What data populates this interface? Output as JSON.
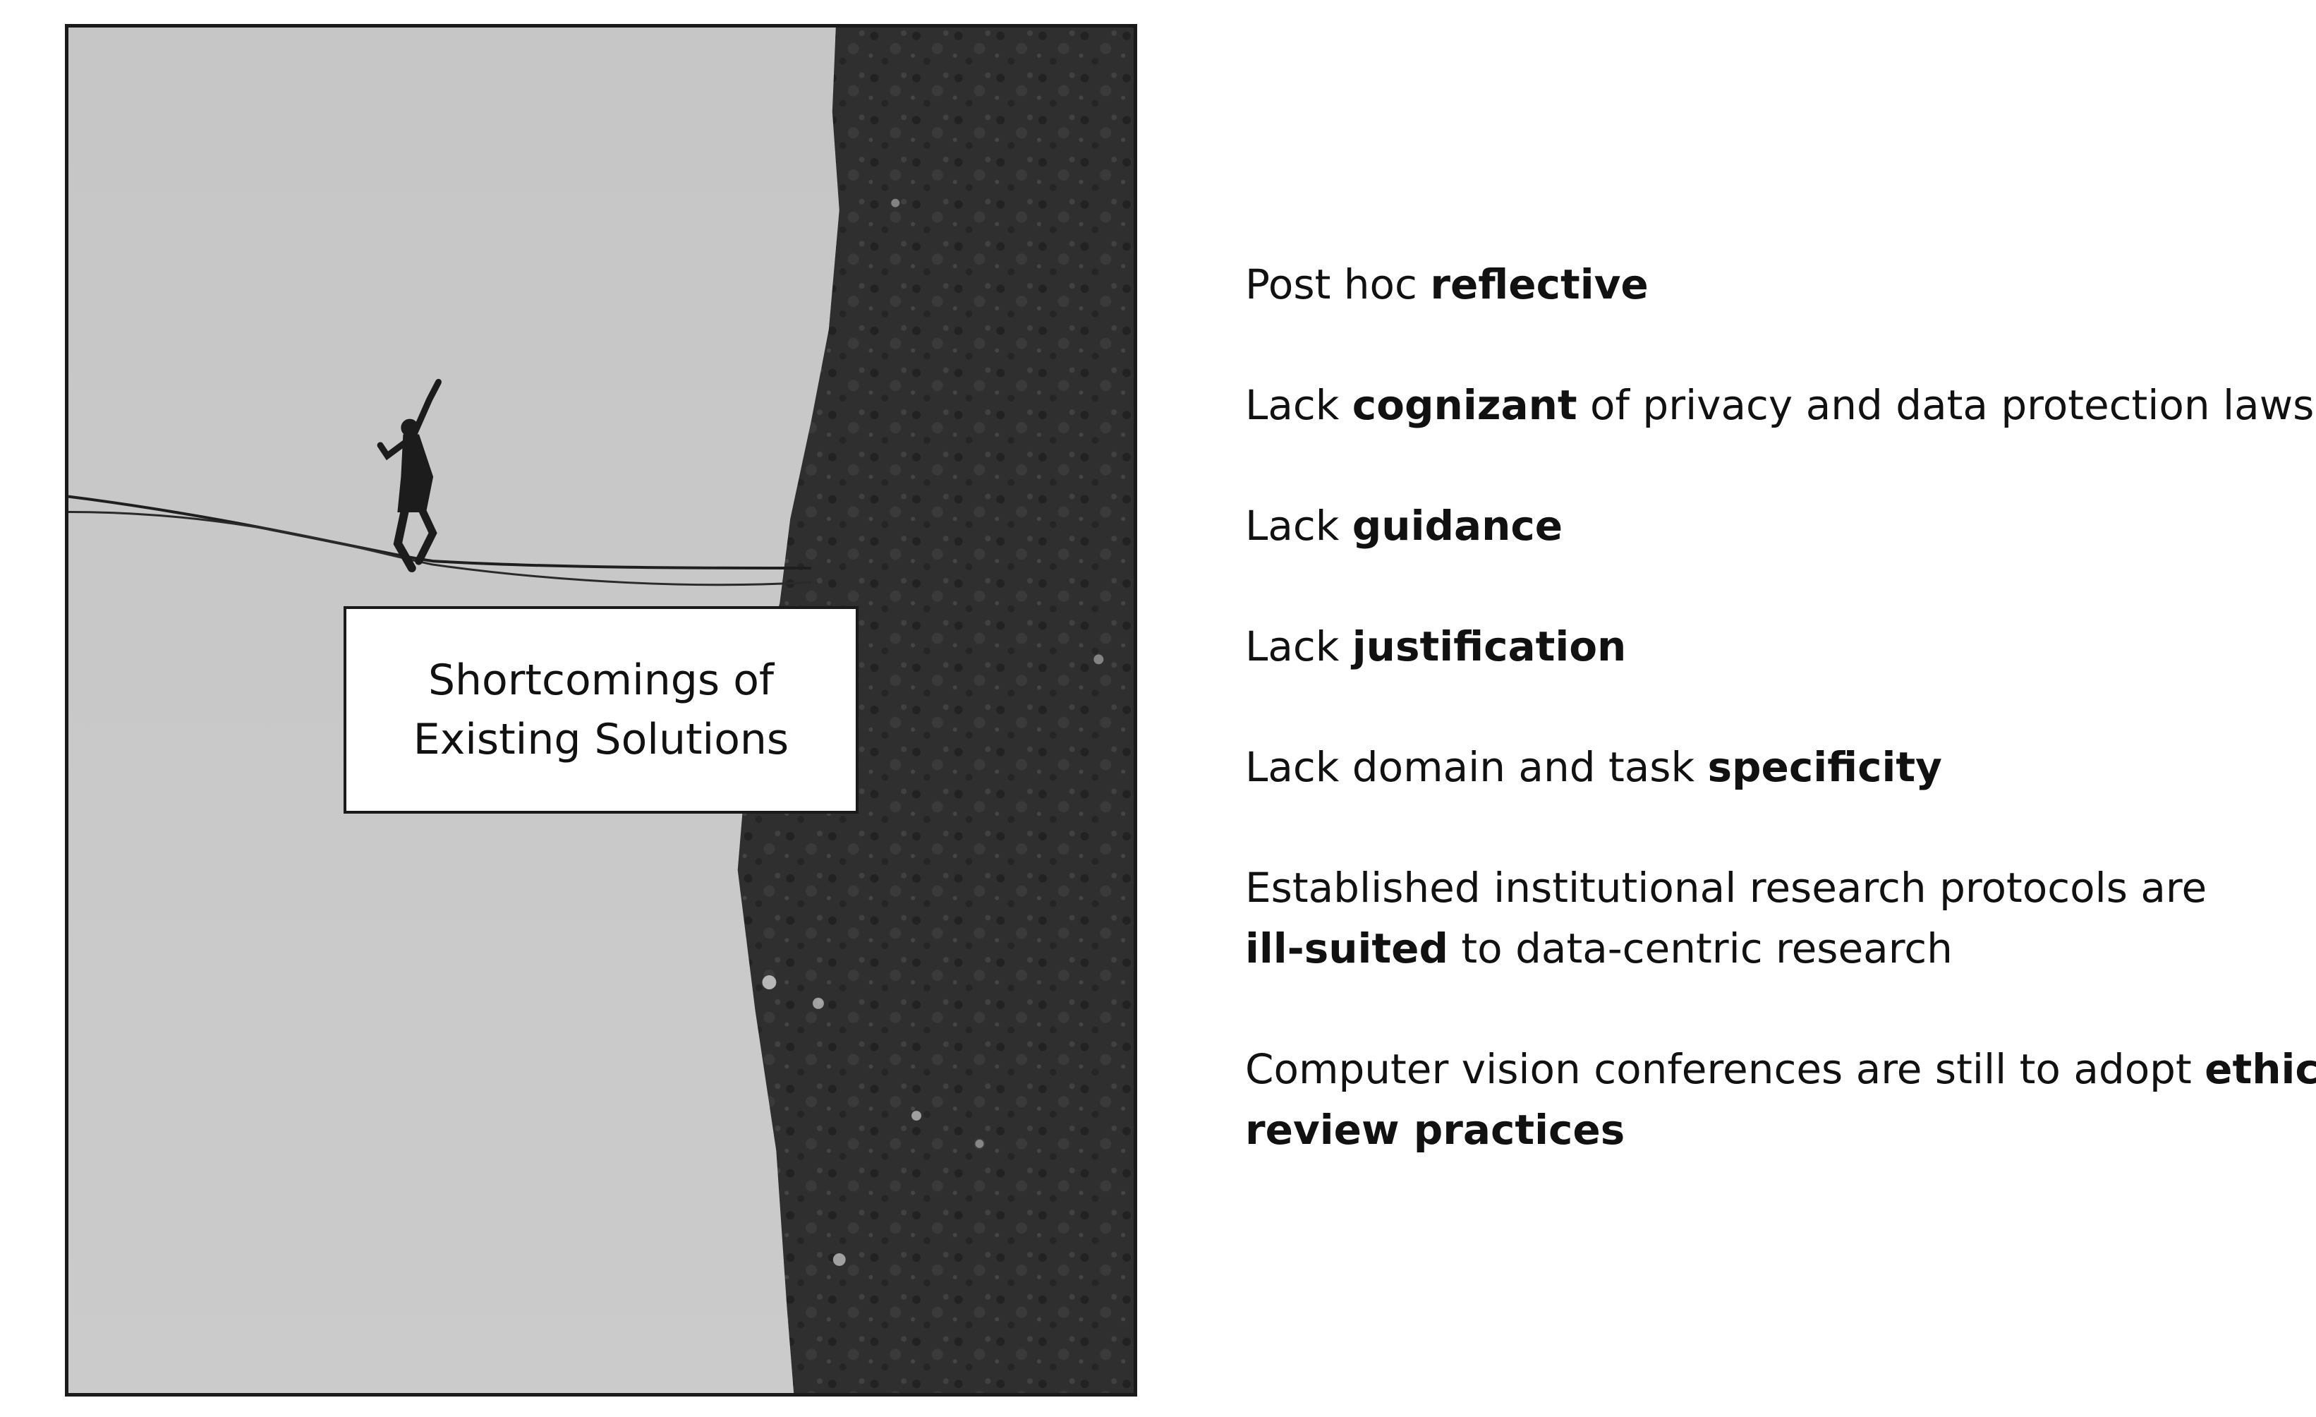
{
  "photo": {
    "description_icon": "slackliner-on-cliff-photo"
  },
  "label_box": {
    "line1": "Shortcomings of",
    "line2": "Existing Solutions"
  },
  "items": [
    {
      "plain1": "Post hoc ",
      "bold1": "reflective",
      "plain2": ""
    },
    {
      "plain1": "Lack ",
      "bold1": "cognizant",
      "plain2": " of privacy and data protection laws"
    },
    {
      "plain1": "Lack ",
      "bold1": "guidance",
      "plain2": ""
    },
    {
      "plain1": "Lack ",
      "bold1": "justification",
      "plain2": ""
    },
    {
      "plain1": "Lack domain and task ",
      "bold1": "specificity",
      "plain2": ""
    }
  ],
  "item6": {
    "line1": "Established institutional research protocols are",
    "bold": "ill-suited",
    "rest": " to data-centric research"
  },
  "item7": {
    "line1_plain": "Computer vision conferences are still to adopt ",
    "line1_bold": "ethics",
    "line2_bold": "review practices"
  }
}
